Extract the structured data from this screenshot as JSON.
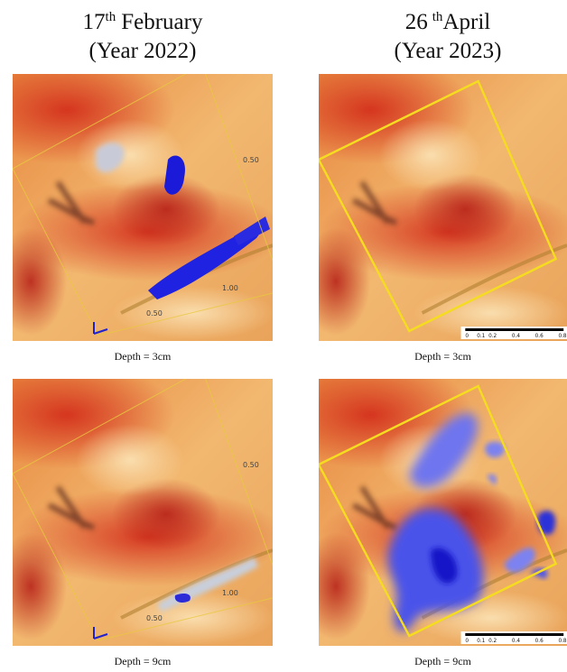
{
  "columns": [
    {
      "day": "17",
      "suffix": "th",
      "month": "February",
      "year": "(Year 2022)"
    },
    {
      "day": "26",
      "suffix": "th",
      "month": "April",
      "year": "(Year 2023)"
    }
  ],
  "panels": [
    {
      "caption": "Depth = 3cm",
      "labels": [
        "0.50",
        "1.00",
        "0.50"
      ]
    },
    {
      "caption": "Depth = 3cm",
      "scale": [
        "0",
        "0.1",
        "0.2",
        "0.4",
        "0.6",
        "0.8"
      ]
    },
    {
      "caption": "Depth = 9cm",
      "labels": [
        "0.50",
        "1.00",
        "0.50"
      ]
    },
    {
      "caption": "Depth = 9cm",
      "scale": [
        "0",
        "0.1",
        "0.2",
        "0.4",
        "0.6",
        "0.8"
      ]
    }
  ]
}
